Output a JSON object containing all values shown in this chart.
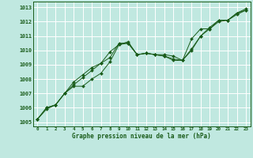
{
  "background_color": "#c0e8e0",
  "grid_color": "#ffffff",
  "line_color": "#1a5c1a",
  "marker_color": "#1a5c1a",
  "title": "Graphe pression niveau de la mer (hPa)",
  "xlim": [
    -0.5,
    23.5
  ],
  "ylim": [
    1004.7,
    1013.4
  ],
  "yticks": [
    1005,
    1006,
    1007,
    1008,
    1009,
    1010,
    1011,
    1012,
    1013
  ],
  "xticks": [
    0,
    1,
    2,
    3,
    4,
    5,
    6,
    7,
    8,
    9,
    10,
    11,
    12,
    13,
    14,
    15,
    16,
    17,
    18,
    19,
    20,
    21,
    22,
    23
  ],
  "series": [
    [
      1005.2,
      1005.9,
      1006.2,
      1007.0,
      1007.6,
      1008.1,
      1008.6,
      1009.1,
      1009.9,
      1010.4,
      1010.6,
      1009.7,
      1009.8,
      1009.7,
      1009.7,
      1009.6,
      1009.3,
      1010.1,
      1011.0,
      1011.5,
      1012.1,
      1012.1,
      1012.6,
      1012.8
    ],
    [
      1005.2,
      1006.0,
      1006.2,
      1007.0,
      1007.8,
      1008.3,
      1008.8,
      1009.1,
      1009.5,
      1010.5,
      1010.5,
      1009.7,
      1009.8,
      1009.7,
      1009.6,
      1009.4,
      1009.3,
      1010.8,
      1011.5,
      1011.5,
      1012.0,
      1012.1,
      1012.5,
      1012.8
    ],
    [
      1005.2,
      1006.0,
      1006.2,
      1007.0,
      1007.5,
      1007.5,
      1008.0,
      1008.4,
      1009.2,
      1010.4,
      1010.5,
      1009.7,
      1009.8,
      1009.7,
      1009.6,
      1009.3,
      1009.3,
      1010.0,
      1011.0,
      1011.6,
      1012.1,
      1012.1,
      1012.6,
      1012.9
    ]
  ]
}
